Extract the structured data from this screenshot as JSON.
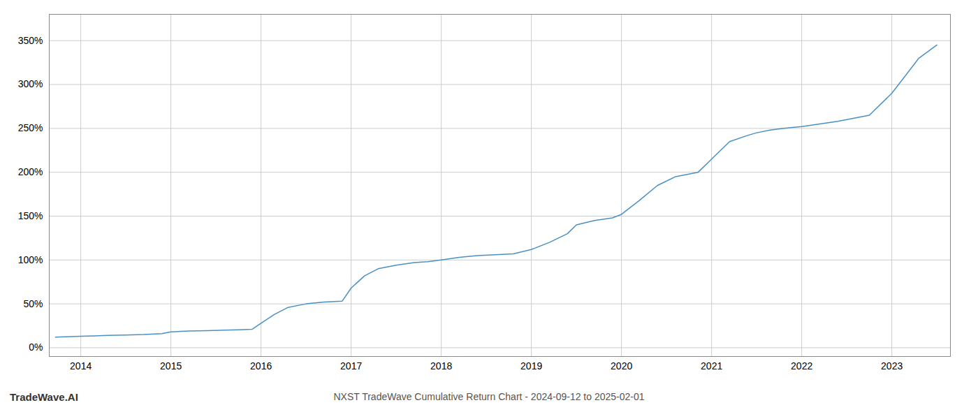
{
  "chart_data": {
    "type": "line",
    "title": "NXST TradeWave Cumulative Return Chart - 2024-09-12 to 2025-02-01",
    "annotations": [
      "TradeWave.AI"
    ],
    "color": "#4a90c4",
    "grid": true,
    "x": [
      2013.72,
      2014.0,
      2014.15,
      2014.3,
      2014.5,
      2014.7,
      2014.9,
      2015.0,
      2015.2,
      2015.4,
      2015.6,
      2015.75,
      2015.9,
      2016.0,
      2016.15,
      2016.3,
      2016.5,
      2016.7,
      2016.9,
      2017.0,
      2017.15,
      2017.3,
      2017.5,
      2017.7,
      2017.85,
      2018.0,
      2018.2,
      2018.4,
      2018.6,
      2018.8,
      2019.0,
      2019.2,
      2019.4,
      2019.5,
      2019.7,
      2019.9,
      2020.0,
      2020.2,
      2020.4,
      2020.6,
      2020.85,
      2021.0,
      2021.2,
      2021.4,
      2021.5,
      2021.65,
      2021.8,
      2022.0,
      2022.2,
      2022.4,
      2022.6,
      2022.75,
      2023.0,
      2023.15,
      2023.3,
      2023.5
    ],
    "values": [
      12,
      13,
      13.5,
      14,
      14.5,
      15,
      16,
      18,
      19,
      19.5,
      20,
      20.5,
      21,
      28,
      38,
      46,
      50,
      52,
      53,
      68,
      82,
      90,
      94,
      97,
      98,
      100,
      103,
      105,
      106,
      107,
      112,
      120,
      130,
      140,
      145,
      148,
      152,
      168,
      185,
      195,
      200,
      215,
      235,
      242,
      245,
      248,
      250,
      252,
      255,
      258,
      262,
      265,
      290,
      310,
      330,
      345
    ],
    "xlim": [
      2013.65,
      2023.65
    ],
    "xticks": [
      2014,
      2015,
      2016,
      2017,
      2018,
      2019,
      2020,
      2021,
      2022,
      2023
    ],
    "ylim": [
      -10,
      380
    ],
    "yticks": [
      {
        "value": 0,
        "label": "0%"
      },
      {
        "value": 50,
        "label": "50%"
      },
      {
        "value": 100,
        "label": "100%"
      },
      {
        "value": 150,
        "label": "150%"
      },
      {
        "value": 200,
        "label": "200%"
      },
      {
        "value": 250,
        "label": "250%"
      },
      {
        "value": 300,
        "label": "300%"
      },
      {
        "value": 350,
        "label": "350%"
      }
    ]
  }
}
